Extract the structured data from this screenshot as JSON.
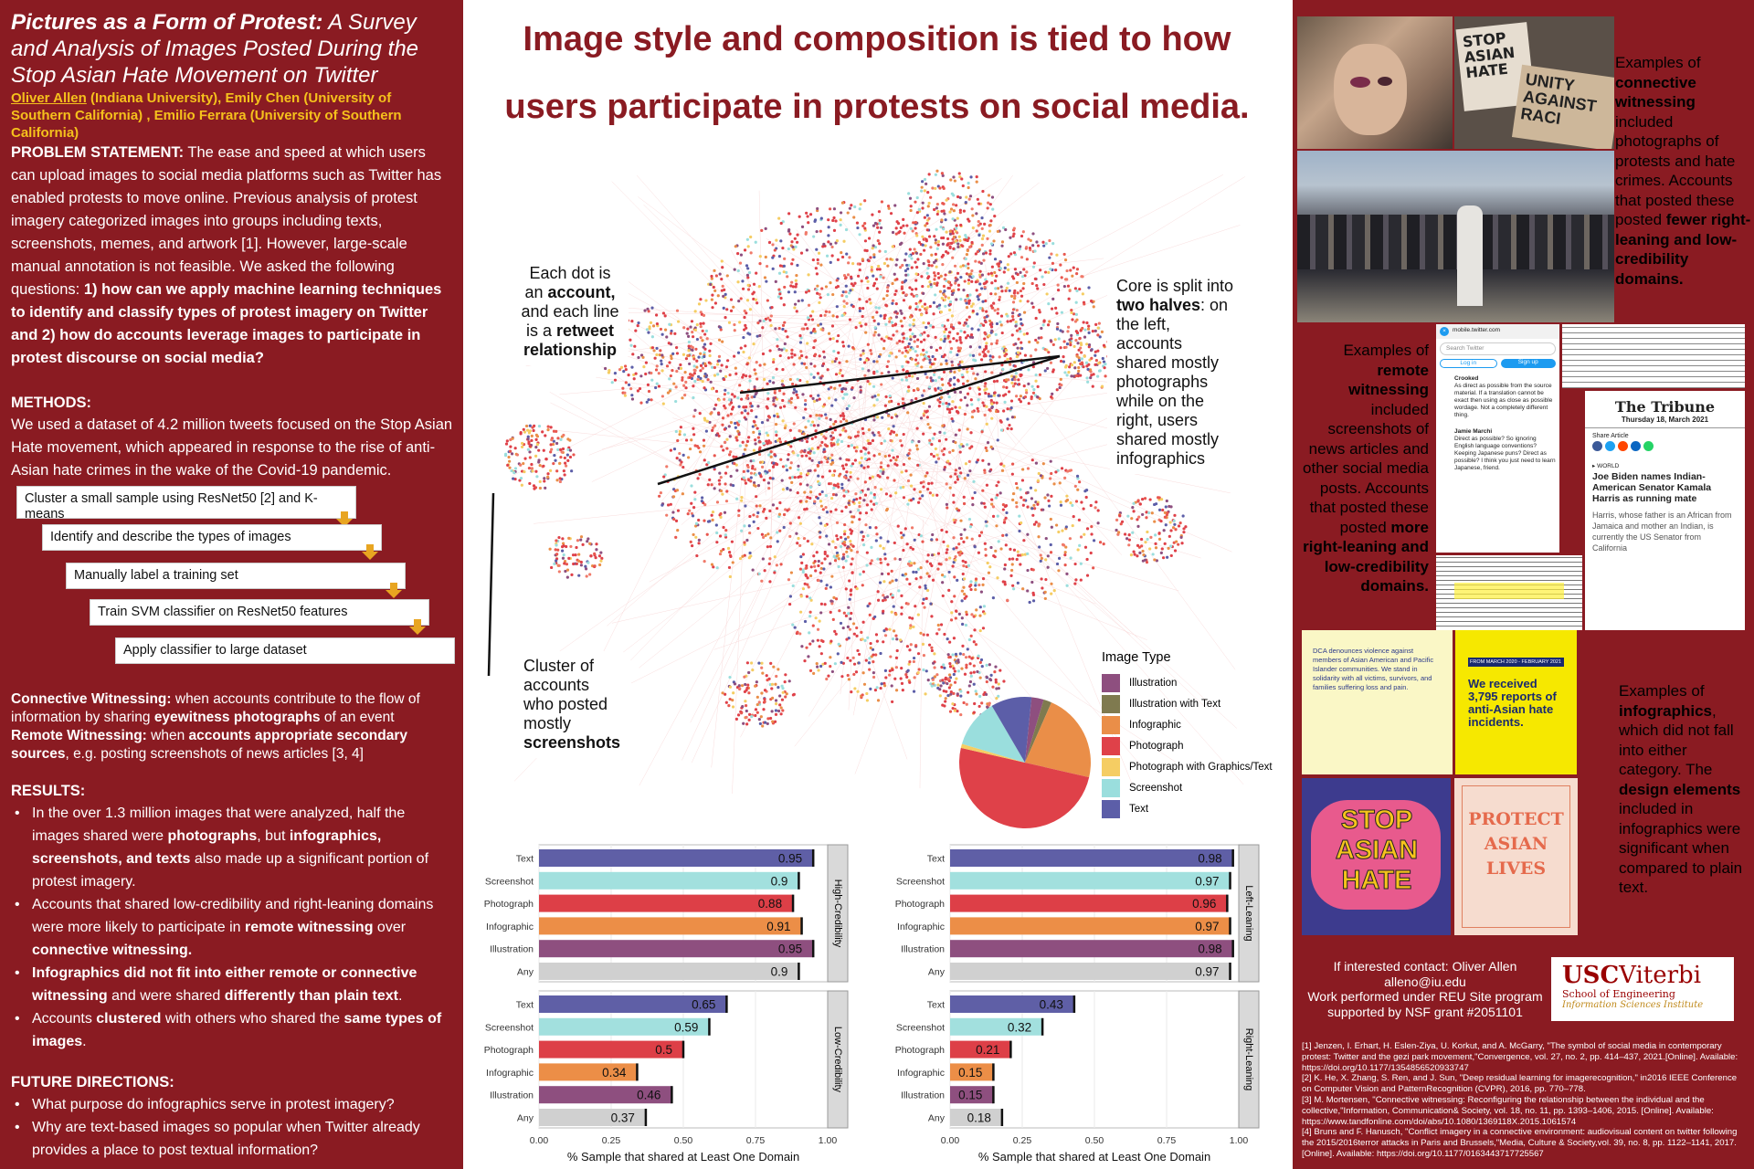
{
  "poster": {
    "title_bold": "Pictures as a Form of Protest:",
    "title_rest": " A Survey and Analysis of Images Posted During the Stop Asian Hate Movement on Twitter",
    "author_first": "Oliver Allen",
    "authors_rest": " (Indiana University), Emily Chen (University of Southern California) , Emilio Ferrara (University of Southern California)",
    "problem_label": "PROBLEM STATEMENT:",
    "problem_text": " The ease and speed at which users can upload images to social media platforms such as Twitter has enabled protests to move online. Previous analysis of protest imagery categorized images into groups including texts, screenshots, memes, and artwork [1]. However, large-scale manual annotation is not feasible. We asked the following questions: ",
    "problem_questions": "1) how can we apply machine learning techniques to identify and classify types of protest imagery on Twitter and 2) how do accounts leverage images to participate in protest discourse on social media?",
    "methods_label": "METHODS:",
    "methods_text": "We used a dataset of 4.2 million tweets focused on the Stop Asian Hate movement, which appeared in response to the rise of anti-Asian hate crimes in the wake of the Covid-19 pandemic.",
    "steps": [
      "Cluster a small sample using ResNet50 [2] and K-means",
      "Identify and describe the types of images",
      "Manually label a training set",
      "Train SVM classifier on ResNet50 features",
      "Apply classifier to large dataset"
    ],
    "connective_label": "Connective Witnessing:",
    "connective_text_a": " when accounts contribute to the flow of information by sharing ",
    "connective_bold": "eyewitness photographs",
    "connective_text_b": " of an event",
    "remote_label": "Remote Witnessing:",
    "remote_text_a": " when ",
    "remote_bold": "accounts appropriate secondary sources",
    "remote_text_b": ", e.g. posting screenshots of news articles [3, 4]",
    "results_label": "RESULTS:",
    "results": [
      {
        "a": "In the over 1.3 million images that were analyzed,  half the images shared were ",
        "b": "photographs",
        "c": ",  but ",
        "d": "infographics, screenshots, and texts",
        "e": " also made up a significant portion of protest imagery."
      },
      {
        "a": "Accounts that shared low-credibility and right-leaning domains were more likely to participate in ",
        "b": "remote witnessing",
        "c": " over ",
        "d": "connective witnessing.",
        "e": ""
      },
      {
        "a": "",
        "b": "Infographics did not fit into either remote or connective witnessing",
        "c": " and were shared ",
        "d": "differently than plain text",
        "e": "."
      },
      {
        "a": "Accounts ",
        "b": "clustered",
        "c": " with others who shared the ",
        "d": "same types of images",
        "e": "."
      }
    ],
    "future_label": "FUTURE DIRECTIONS:",
    "future": [
      "What purpose do infographics serve in protest imagery?",
      "Why are text-based images so popular when Twitter already provides a place to post textual information?"
    ]
  },
  "headline": {
    "line1": "Image style and composition is tied to how",
    "line2": "users participate in protests on social media."
  },
  "network": {
    "callout_dot_a": "Each dot is an ",
    "callout_dot_b": "account,",
    "callout_dot_c": " and each line is a ",
    "callout_dot_d": "retweet relationship",
    "callout_core_a": "Core is split into ",
    "callout_core_b": "two halves",
    "callout_core_c": ": on the left, accounts shared mostly photographs while on the right, users shared mostly infographics",
    "callout_cluster_a": "Cluster of accounts who posted mostly ",
    "callout_cluster_b": "screenshots",
    "legend_title": "Image Type",
    "legend": [
      {
        "label": "Illustration",
        "color": "#8e4f7f"
      },
      {
        "label": "Illustration with Text",
        "color": "#7f7a4f"
      },
      {
        "label": "Infographic",
        "color": "#ea8e48"
      },
      {
        "label": "Photograph",
        "color": "#df4149"
      },
      {
        "label": "Photograph with Graphics/Text",
        "color": "#f5cd63"
      },
      {
        "label": "Screenshot",
        "color": "#9adedd"
      },
      {
        "label": "Text",
        "color": "#5c5ea8"
      }
    ]
  },
  "chart_data": [
    {
      "type": "bar",
      "categories": [
        "Text",
        "Screenshot",
        "Photograph",
        "Infographic",
        "Illustration",
        "Any"
      ],
      "panels": [
        {
          "facet": "High-Credibility",
          "values": [
            0.95,
            0.9,
            0.88,
            0.91,
            0.95,
            0.9
          ]
        },
        {
          "facet": "Low-Credibility",
          "values": [
            0.65,
            0.59,
            0.5,
            0.34,
            0.46,
            0.37
          ]
        }
      ],
      "colors": [
        "#5f5fa6",
        "#a2e0de",
        "#dd3f47",
        "#ec8e47",
        "#8e4f7f",
        "#d0d0d0"
      ],
      "xlabel": "% Sample that shared at Least One Domain",
      "xlim": [
        0,
        1
      ],
      "xticks": [
        "0.00",
        "0.25",
        "0.50",
        "0.75",
        "1.00"
      ]
    },
    {
      "type": "bar",
      "categories": [
        "Text",
        "Screenshot",
        "Photograph",
        "Infographic",
        "Illustration",
        "Any"
      ],
      "panels": [
        {
          "facet": "Left-Leaning",
          "values": [
            0.98,
            0.97,
            0.96,
            0.97,
            0.98,
            0.97
          ]
        },
        {
          "facet": "Right-Leaning",
          "values": [
            0.43,
            0.32,
            0.21,
            0.15,
            0.15,
            0.18
          ]
        }
      ],
      "colors": [
        "#5f5fa6",
        "#a2e0de",
        "#dd3f47",
        "#ec8e47",
        "#8e4f7f",
        "#d0d0d0"
      ],
      "xlabel": "% Sample that shared at Least One Domain",
      "xlim": [
        0,
        1
      ],
      "xticks": [
        "0.00",
        "0.25",
        "0.50",
        "0.75",
        "1.00"
      ]
    }
  ],
  "right": {
    "connective_a": "Examples of ",
    "connective_b": "connective witnessing",
    "connective_c": " included photographs of protests and hate crimes. Accounts that posted these posted ",
    "connective_d": "fewer right-leaning and low-credibility domains.",
    "remote_a": "Examples of ",
    "remote_b": "remote witnessing",
    "remote_c": " included screenshots of news articles and other social media posts. Accounts that posted these posted ",
    "remote_d": "more right-leaning and low-credibility domains.",
    "info_a": "Examples of ",
    "info_b": "infographics",
    "info_c": ", which did not fall into either category.  The ",
    "info_d": "design elements",
    "info_e": " included in infographics were significant when compared to plain text.",
    "sign1": "STOP ASIAN HATE",
    "sign2": "UNITY AGAINST RACI",
    "tweet_url": "mobile.twitter.com",
    "tweet_search": "Search Twitter",
    "tweet_login": "Log in",
    "tweet_signup": "Sign up",
    "tweet_user1": "Crooked",
    "tweet_text1": "As direct as possible from the source material. If a translation cannot be exact then using as close as possible wordage. Not a completely different thing.",
    "tweet_user2": "Jamie Marchi",
    "tweet_text2": "Direct as possible? So ignoring English language conventions? Keeping Japanese puns? Direct as possible? I think you just need to learn Japanese, friend.",
    "news_masthead": "The Tribune",
    "news_date": "Thursday 18, March 2021",
    "news_share": "Share Article",
    "news_section": "WORLD",
    "news_headline": "Joe Biden names Indian-American Senator Kamala Harris as running mate",
    "news_body": "Harris, whose father is an African from Jamaica and mother an Indian, is currently the US Senator from California",
    "info1_text": "DCA denounces violence against members of Asian American and Pacific Islander communities. We stand in solidarity with all victims, survivors, and families suffering loss and pain.",
    "info2_date": "FROM MARCH 2020 - FEBRUARY 2021",
    "info2_text": "We received 3,795 reports of anti-Asian hate incidents.",
    "info3_text": "STOP ASIAN HATE",
    "info4_text": "PROTECT ASIAN LIVES",
    "contact": "If interested contact: Oliver Allen\nalleno@iu.edu\nWork performed under REU Site program supported by NSF grant #2051101",
    "usc_name": "USC",
    "usc_viterbi": "Viterbi",
    "usc_school": "School of Engineering",
    "usc_institute": "Information Sciences Institute",
    "refs": [
      "[1] Jenzen, I. Erhart, H. Eslen-Ziya, U. Korkut, and A. McGarry, \"The symbol of social media in contemporary protest: Twitter and the gezi park  movement,\"Convergence, vol. 27, no. 2, pp. 414–437, 2021.[Online]. Available: https://doi.org/10.1177/1354856520933747",
      "[2] K. He, X. Zhang, S. Ren, and J. Sun, \"Deep residual learning for imagerecognition,\" in2016 IEEE Conference on Computer Vision and PatternRecognition (CVPR), 2016, pp. 770–778.",
      "[3] M. Mortensen, \"Connective witnessing: Reconfiguring the relationship between the individual and the collective,\"Information, Communication& Society, vol. 18, no. 11, pp. 1393–1406, 2015. [Online]. Available: https://www.tandfonline.com/doi/abs/10.1080/1369118X.2015.1061574",
      "[4] Bruns and F. Hanusch, \"Conflict imagery in a connective environment: audiovisual content on twitter following the 2015/2016terror attacks in Paris and Brussels,\"Media, Culture & Society,vol. 39, no. 8, pp. 1122–1141, 2017. [Online]. Available: https://doi.org/10.1177/0163443717725567"
    ]
  }
}
